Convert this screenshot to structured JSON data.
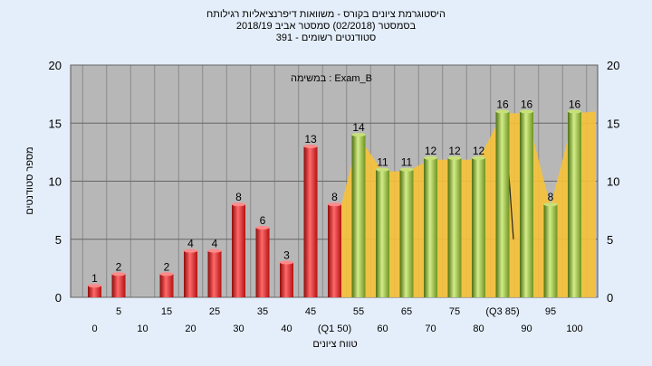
{
  "header": {
    "line1": "היסטוגרמת ציונים בקורס - משוואות דיפרנציאליות רגילותח",
    "line2": "בסמסטר  (02/2018)  סמסטר אביב 2018/19",
    "line3": "סטודנטים רשומים - 391"
  },
  "chart_data": {
    "type": "bar",
    "annotation": "במשימה : Exam_B",
    "ylabel": "מספר סטודנטים",
    "xlabel": "טווח ציונים",
    "ylim": [
      0,
      20
    ],
    "yticks": [
      0,
      5,
      10,
      15,
      20
    ],
    "grid": true,
    "categories": [
      0,
      5,
      10,
      15,
      20,
      25,
      30,
      35,
      40,
      45,
      50,
      55,
      60,
      65,
      70,
      75,
      80,
      85,
      90,
      95,
      100
    ],
    "x_tick_labels": [
      "0",
      "5",
      "10",
      "15",
      "20",
      "25",
      "30",
      "35",
      "40",
      "45",
      "(Q1 50)",
      "55",
      "60",
      "65",
      "70",
      "75",
      "80",
      "(Q3 85)",
      "90",
      "95",
      "100"
    ],
    "values": [
      1,
      2,
      0,
      2,
      4,
      4,
      8,
      6,
      3,
      13,
      8,
      14,
      11,
      11,
      12,
      12,
      12,
      16,
      16,
      8,
      16
    ],
    "value_labels": [
      "1",
      "2",
      "",
      "2",
      "4",
      "4",
      "8",
      "6",
      "3",
      "13",
      "8",
      "14",
      "11",
      "11",
      "12",
      "12",
      "12",
      "16",
      "16",
      "8",
      "16"
    ],
    "fail_threshold": 55,
    "colors": {
      "fail_bar": "#d42020",
      "pass_bar": "#8ab534",
      "band": "#f7c23a",
      "plot_bg": "#b7b7b7",
      "grid": "#8a8a8a",
      "page_bg": "#e4eefa"
    }
  }
}
